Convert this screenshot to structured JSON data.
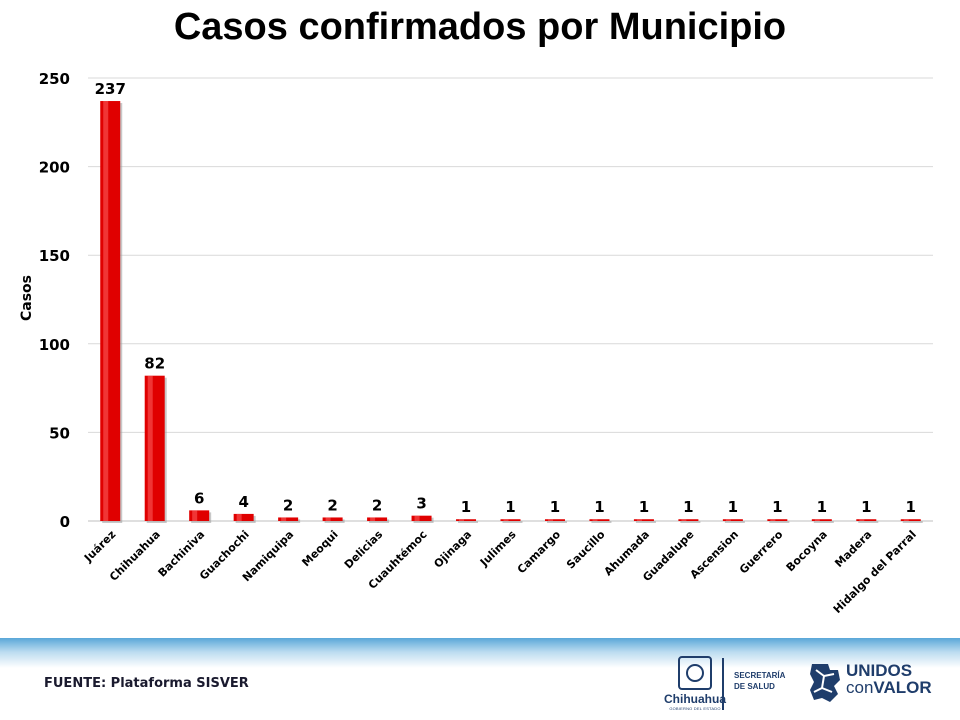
{
  "chart_data": {
    "type": "bar",
    "title": "Casos confirmados por Municipio",
    "xlabel": "",
    "ylabel": "Casos",
    "ylim": [
      0,
      250
    ],
    "yticks": [
      0,
      50,
      100,
      150,
      200,
      250
    ],
    "grid": true,
    "categories": [
      "Juárez",
      "Chihuahua",
      "Bachiniva",
      "Guachochi",
      "Namiquipa",
      "Meoqui",
      "Delicias",
      "Cuauhtémoc",
      "Ojinaga",
      "Julimes",
      "Camargo",
      "Saucillo",
      "Ahumada",
      "Guadalupe",
      "Ascension",
      "Guerrero",
      "Bocoyna",
      "Madera",
      "Hidalgo del Parral"
    ],
    "values": [
      237,
      82,
      6,
      4,
      2,
      2,
      2,
      3,
      1,
      1,
      1,
      1,
      1,
      1,
      1,
      1,
      1,
      1,
      1
    ],
    "bar_color": "#e00000"
  },
  "footer": {
    "source_label": "FUENTE: Plataforma SISVER",
    "logo_chihuahua": "Chihuahua",
    "logo_chihuahua_sub": "GOBIERNO DEL ESTADO",
    "logo_salud_line1": "SECRETARÍA",
    "logo_salud_line2": "DE SALUD",
    "logo_unidos_line1": "UNIDOS",
    "logo_unidos_line2a": "con",
    "logo_unidos_line2b": "VALOR"
  }
}
